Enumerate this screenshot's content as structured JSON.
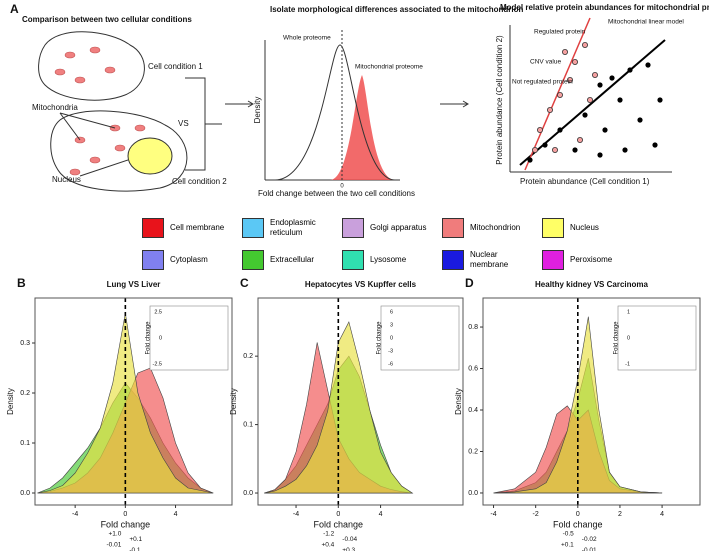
{
  "panel_a": {
    "label": "A",
    "left": {
      "title": "Comparison between two cellular conditions",
      "cell1": "Cell condition 1",
      "cell2": "Cell condition 2",
      "vs": "VS",
      "mitochondria": "Mitochondria",
      "nucleus": "Nucleus"
    },
    "middle": {
      "title": "Isolate morphological differences associated to the mitochondrion",
      "whole": "Whole proteome",
      "mito": "Mitochondrial proteome",
      "ylabel": "Density",
      "xlabel": "Fold change between the two cell conditions",
      "zero": "0"
    },
    "right": {
      "title": "Model relative protein abundances for mitochondrial proteins",
      "model": "Mitochondrial linear model",
      "regulated": "Regulated protein",
      "cnv": "CNV value",
      "not_regulated": "Not regulated protein",
      "ylabel": "Protein abundance (Cell condition 2)",
      "xlabel": "Protein abundance (Cell condition 1)"
    }
  },
  "legend": [
    {
      "name": "Cell membrane",
      "color": "#e8131b"
    },
    {
      "name": "Endoplasmic reticulum",
      "color": "#5bc8f5"
    },
    {
      "name": "Golgi apparatus",
      "color": "#c9a0dc"
    },
    {
      "name": "Mitochondrion",
      "color": "#f07c7c"
    },
    {
      "name": "Nucleus",
      "color": "#ffff66"
    },
    {
      "name": "Cytoplasm",
      "color": "#8080f0"
    },
    {
      "name": "Extracellular",
      "color": "#44c830"
    },
    {
      "name": "Lysosome",
      "color": "#30e0b0"
    },
    {
      "name": "Nuclear membrane",
      "color": "#1a1ae0"
    },
    {
      "name": "Peroxisome",
      "color": "#e020e0"
    }
  ],
  "chart_data": [
    {
      "type": "density",
      "label": "B",
      "title": "Lung VS Liver",
      "xlabel": "Fold change",
      "ylabel": "Density",
      "xlim": [
        -7.2,
        8.5
      ],
      "ylim": [
        -0.024,
        0.39
      ],
      "xticks": [
        -4,
        0,
        4
      ],
      "yticks": [
        {
          "value": 0,
          "label": "0.0"
        },
        {
          "value": 0.1,
          "label": "0.1"
        },
        {
          "value": 0.2,
          "label": "0.2"
        },
        {
          "value": 0.3,
          "label": "0.3"
        }
      ],
      "x": [
        -7,
        -6,
        -5,
        -4,
        -3,
        -2,
        -1,
        0,
        1,
        2,
        3,
        4,
        5,
        6,
        7
      ],
      "series": [
        {
          "name": "Extracellular",
          "color": "#44c830",
          "values": [
            0,
            0.01,
            0.03,
            0.06,
            0.09,
            0.13,
            0.18,
            0.22,
            0.19,
            0.15,
            0.1,
            0.06,
            0.03,
            0.01,
            0
          ]
        },
        {
          "name": "Mitochondrion",
          "color": "#f05050",
          "values": [
            0,
            0.003,
            0.01,
            0.02,
            0.04,
            0.07,
            0.12,
            0.18,
            0.24,
            0.25,
            0.19,
            0.1,
            0.04,
            0.01,
            0
          ]
        },
        {
          "name": "Nucleus",
          "color": "#e8e040",
          "values": [
            0,
            0.005,
            0.015,
            0.04,
            0.08,
            0.13,
            0.22,
            0.36,
            0.2,
            0.12,
            0.07,
            0.03,
            0.01,
            0.005,
            0
          ]
        }
      ],
      "inset": {
        "ylabel": "Fold change",
        "ticks": [
          "2.5",
          "0",
          "-2.5"
        ]
      },
      "annotations": [
        "+1.0",
        "+0.1",
        "-0.01",
        "-0.1"
      ]
    },
    {
      "type": "density",
      "label": "C",
      "title": "Hepatocytes VS Kupffer cells",
      "xlabel": "Fold change",
      "ylabel": "Density",
      "xlim": [
        -7.6,
        11.8
      ],
      "ylim": [
        -0.0175,
        0.285
      ],
      "xticks": [
        -4,
        0,
        4
      ],
      "yticks": [
        {
          "value": 0,
          "label": "0.0"
        },
        {
          "value": 0.1,
          "label": "0.1"
        },
        {
          "value": 0.2,
          "label": "0.2"
        }
      ],
      "x": [
        -7,
        -6,
        -5,
        -4,
        -3,
        -2,
        -1,
        0,
        1,
        2,
        3,
        4,
        5,
        6,
        7
      ],
      "series": [
        {
          "name": "Extracellular",
          "color": "#44c830",
          "values": [
            0,
            0.005,
            0.02,
            0.04,
            0.07,
            0.1,
            0.13,
            0.18,
            0.2,
            0.17,
            0.12,
            0.07,
            0.03,
            0.01,
            0
          ]
        },
        {
          "name": "Mitochondrion",
          "color": "#f05050",
          "values": [
            0,
            0.005,
            0.02,
            0.06,
            0.13,
            0.22,
            0.15,
            0.08,
            0.05,
            0.03,
            0.02,
            0.01,
            0.005,
            0.002,
            0
          ]
        },
        {
          "name": "Nucleus",
          "color": "#e8e040",
          "values": [
            0,
            0.003,
            0.01,
            0.02,
            0.04,
            0.07,
            0.12,
            0.22,
            0.25,
            0.19,
            0.12,
            0.06,
            0.03,
            0.01,
            0
          ]
        }
      ],
      "inset": {
        "ylabel": "Fold change",
        "ticks": [
          "6",
          "3",
          "0",
          "-3",
          "-6"
        ]
      },
      "annotations": [
        "-1.2",
        "-0.04",
        "+0.4",
        "+0.3"
      ]
    },
    {
      "type": "density",
      "label": "D",
      "title": "Healthy kidney VS Carcinoma",
      "xlabel": "Fold change",
      "ylabel": "Density",
      "xlim": [
        -4.5,
        5.8
      ],
      "ylim": [
        -0.058,
        0.94
      ],
      "xticks": [
        -4,
        -2,
        0,
        2,
        4
      ],
      "yticks": [
        {
          "value": 0,
          "label": "0.0"
        },
        {
          "value": 0.2,
          "label": "0.2"
        },
        {
          "value": 0.4,
          "label": "0.4"
        },
        {
          "value": 0.6,
          "label": "0.6"
        },
        {
          "value": 0.8,
          "label": "0.8"
        }
      ],
      "x": [
        -4,
        -3,
        -2,
        -1.5,
        -1,
        -0.5,
        0,
        0.5,
        1,
        1.5,
        2,
        3,
        4
      ],
      "series": [
        {
          "name": "Extracellular",
          "color": "#44c830",
          "values": [
            0,
            0.01,
            0.05,
            0.1,
            0.2,
            0.3,
            0.45,
            0.65,
            0.35,
            0.1,
            0.03,
            0.005,
            0
          ]
        },
        {
          "name": "Mitochondrion",
          "color": "#f05050",
          "values": [
            0,
            0.02,
            0.1,
            0.22,
            0.38,
            0.42,
            0.35,
            0.4,
            0.2,
            0.06,
            0.02,
            0.005,
            0
          ]
        },
        {
          "name": "Nucleus",
          "color": "#e8e040",
          "values": [
            0,
            0.005,
            0.02,
            0.05,
            0.15,
            0.3,
            0.55,
            0.85,
            0.4,
            0.1,
            0.03,
            0.005,
            0
          ]
        }
      ],
      "inset": {
        "ylabel": "Fold change",
        "ticks": [
          "1",
          "0",
          "-1"
        ]
      },
      "annotations": [
        "-0.5",
        "-0.02",
        "+0.1",
        "-0.01"
      ]
    }
  ]
}
